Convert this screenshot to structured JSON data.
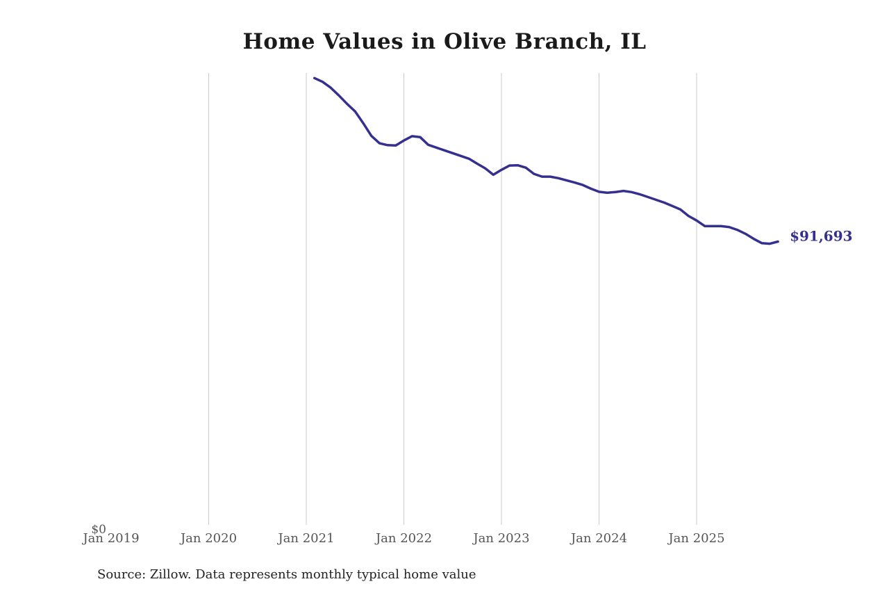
{
  "title": "Home Values in Olive Branch, IL",
  "source_note": "Source: Zillow. Data represents monthly typical home value",
  "colors": {
    "line": "#35308f",
    "grid": "#cbcbcb",
    "tick_label": "#555555",
    "title": "#1a1a1a",
    "footer": "#222222",
    "background": "#ffffff"
  },
  "chart_data": {
    "type": "line",
    "title": "Home Values in Olive Branch, IL",
    "series_name": "Monthly typical home value",
    "y_zero_label": "$0",
    "end_label": "$91,693",
    "end_value": 91693,
    "ylim": [
      0,
      146250
    ],
    "grid": "vertical-only",
    "legend_position": "none",
    "x_tick_labels": [
      "Jan 2019",
      "Jan 2020",
      "Jan 2021",
      "Jan 2022",
      "Jan 2023",
      "Jan 2024",
      "Jan 2025"
    ],
    "x_tick_years": [
      2019,
      2020,
      2021,
      2022,
      2023,
      2024,
      2025
    ],
    "gridline_years": [
      2020,
      2021,
      2022,
      2023,
      2024,
      2025
    ],
    "x": [
      "2021-02",
      "2021-03",
      "2021-04",
      "2021-05",
      "2021-06",
      "2021-07",
      "2021-08",
      "2021-09",
      "2021-10",
      "2021-11",
      "2021-12",
      "2022-01",
      "2022-02",
      "2022-03",
      "2022-04",
      "2022-05",
      "2022-06",
      "2022-07",
      "2022-08",
      "2022-09",
      "2022-10",
      "2022-11",
      "2022-12",
      "2023-01",
      "2023-02",
      "2023-03",
      "2023-04",
      "2023-05",
      "2023-06",
      "2023-07",
      "2023-08",
      "2023-09",
      "2023-10",
      "2023-11",
      "2023-12",
      "2024-01",
      "2024-02",
      "2024-03",
      "2024-04",
      "2024-05",
      "2024-06",
      "2024-07",
      "2024-08",
      "2024-09",
      "2024-10",
      "2024-11",
      "2024-12",
      "2025-01",
      "2025-02",
      "2025-03",
      "2025-04",
      "2025-05",
      "2025-06",
      "2025-07",
      "2025-08",
      "2025-09",
      "2025-10",
      "2025-11"
    ],
    "values": [
      144600,
      143400,
      141500,
      139000,
      136300,
      133800,
      130000,
      125900,
      123500,
      122900,
      122800,
      124400,
      125800,
      125500,
      123000,
      122100,
      121200,
      120300,
      119400,
      118500,
      116900,
      115400,
      113300,
      114900,
      116300,
      116400,
      115600,
      113600,
      112700,
      112700,
      112200,
      111500,
      110800,
      110000,
      108800,
      107800,
      107500,
      107700,
      108100,
      107700,
      107000,
      106100,
      105200,
      104300,
      103200,
      102100,
      100000,
      98500,
      96700,
      96700,
      96700,
      96400,
      95500,
      94200,
      92600,
      91200,
      91000,
      91693
    ]
  }
}
